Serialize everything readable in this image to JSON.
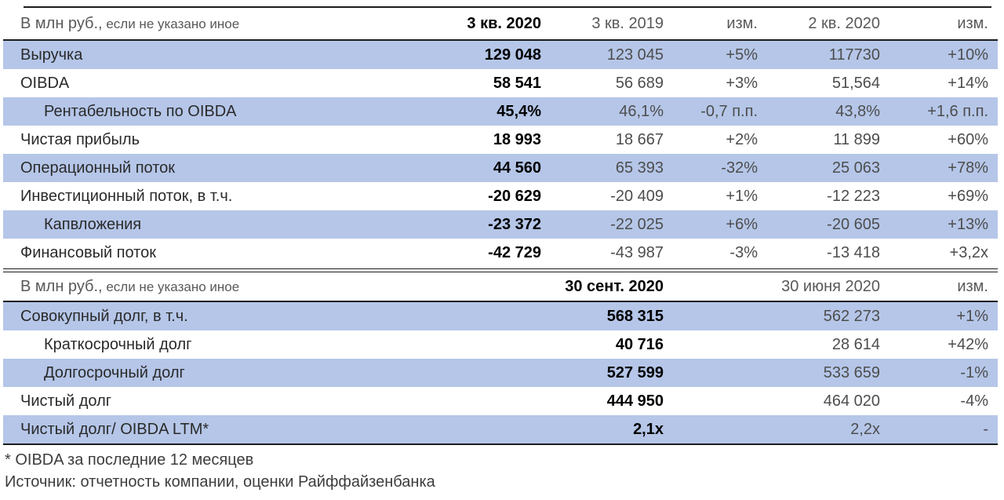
{
  "colors": {
    "row_highlight": "#b5c6e8",
    "header_text": "#595959",
    "rule": "#1c1c1c"
  },
  "table1": {
    "unit_label": "В млн руб.,",
    "unit_label_small": " если не указано иное",
    "columns": [
      "3 кв. 2020",
      "3 кв. 2019",
      "изм.",
      "2 кв. 2020",
      "изм."
    ],
    "rows": [
      {
        "label": "Выручка",
        "indent": false,
        "highlight": true,
        "values": [
          "129 048",
          "123 045",
          "+5%",
          "117730",
          "+10%"
        ]
      },
      {
        "label": "OIBDA",
        "indent": false,
        "highlight": false,
        "values": [
          "58 541",
          "56 689",
          "+3%",
          "51,564",
          "+14%"
        ]
      },
      {
        "label": "Рентабельность по OIBDA",
        "indent": true,
        "highlight": true,
        "values": [
          "45,4%",
          "46,1%",
          "-0,7 п.п.",
          "43,8%",
          "+1,6 п.п."
        ]
      },
      {
        "label": "Чистая прибыль",
        "indent": false,
        "highlight": false,
        "values": [
          "18 993",
          "18 667",
          "+2%",
          "11 899",
          "+60%"
        ]
      },
      {
        "label": "Операционный поток",
        "indent": false,
        "highlight": true,
        "values": [
          "44 560",
          "65 393",
          "-32%",
          "25 063",
          "+78%"
        ]
      },
      {
        "label": "Инвестиционный поток, в т.ч.",
        "indent": false,
        "highlight": false,
        "values": [
          "-20 629",
          "-20 409",
          "+1%",
          "-12 223",
          "+69%"
        ]
      },
      {
        "label": "Капвложения",
        "indent": true,
        "highlight": true,
        "values": [
          "-23 372",
          "-22 025",
          "+6%",
          "-20 605",
          "+13%"
        ]
      },
      {
        "label": "Финансовый поток",
        "indent": false,
        "highlight": false,
        "values": [
          "-42 729",
          "-43 987",
          "-3%",
          "-13 418",
          "+3,2x"
        ]
      }
    ]
  },
  "table2": {
    "unit_label": "В млн руб.,",
    "unit_label_small": " если не указано иное",
    "columns": [
      "30 сент. 2020",
      "30 июня 2020",
      "изм."
    ],
    "rows": [
      {
        "label": "Совокупный долг, в т.ч.",
        "indent": false,
        "highlight": true,
        "values": [
          "568 315",
          "562 273",
          "+1%"
        ]
      },
      {
        "label": "Краткосрочный долг",
        "indent": true,
        "highlight": false,
        "values": [
          "40 716",
          "28 614",
          "+42%"
        ]
      },
      {
        "label": "Долгосрочный долг",
        "indent": true,
        "highlight": true,
        "values": [
          "527 599",
          "533 659",
          "-1%"
        ]
      },
      {
        "label": "Чистый долг",
        "indent": false,
        "highlight": false,
        "values": [
          "444 950",
          "464 020",
          "-4%"
        ]
      },
      {
        "label": "Чистый долг/ OIBDA LTM*",
        "indent": false,
        "highlight": true,
        "values": [
          "2,1x",
          "2,2x",
          "-"
        ]
      }
    ]
  },
  "footnotes": [
    "* OIBDA за последние 12 месяцев",
    "Источник: отчетность компании, оценки Райффайзенбанка"
  ]
}
